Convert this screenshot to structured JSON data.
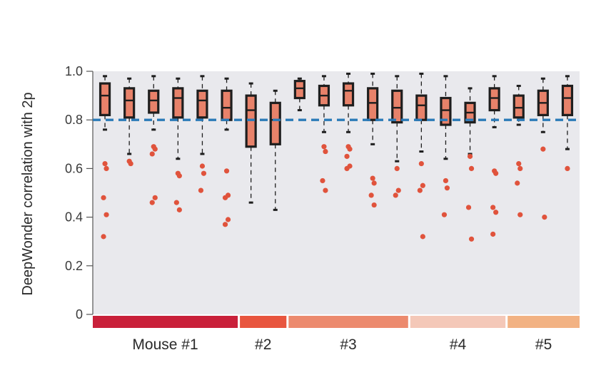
{
  "chart_data": {
    "type": "box",
    "title": "",
    "xlabel": "",
    "ylabel": "DeepWonder correlation with 2p",
    "ylim": [
      0,
      1.0
    ],
    "yticks": [
      "0",
      "0.2",
      "0.4",
      "0.6",
      "0.8",
      "1.0"
    ],
    "ytick_values": [
      0,
      0.2,
      0.4,
      0.6,
      0.8,
      1.0
    ],
    "threshold": 0.8,
    "grid": false,
    "colors": {
      "plot_bg": "#e9e9ed",
      "box_fill": "#e8826a",
      "box_edge": "#1e1e1e",
      "outlier": "#e0533c",
      "threshold_line": "#2a7ab8"
    },
    "groups": [
      {
        "label": "Mouse #1",
        "color": "#c9203a",
        "count": 6
      },
      {
        "label": "#2",
        "color": "#e8553e",
        "count": 2
      },
      {
        "label": "#3",
        "color": "#ec8a6e",
        "count": 5
      },
      {
        "label": "#4",
        "color": "#f4c8b8",
        "count": 4
      },
      {
        "label": "#5",
        "color": "#f2b283",
        "count": 3
      }
    ],
    "boxes": [
      {
        "group": 0,
        "wlo": 0.76,
        "q1": 0.82,
        "med": 0.9,
        "q3": 0.95,
        "whi": 0.98,
        "outliers": [
          0.62,
          0.6,
          0.48,
          0.41,
          0.32
        ]
      },
      {
        "group": 0,
        "wlo": 0.66,
        "q1": 0.81,
        "med": 0.88,
        "q3": 0.93,
        "whi": 0.97,
        "outliers": [
          0.63,
          0.62
        ]
      },
      {
        "group": 0,
        "wlo": 0.76,
        "q1": 0.83,
        "med": 0.88,
        "q3": 0.92,
        "whi": 0.98,
        "outliers": [
          0.69,
          0.68,
          0.66,
          0.48,
          0.46
        ]
      },
      {
        "group": 0,
        "wlo": 0.64,
        "q1": 0.81,
        "med": 0.89,
        "q3": 0.93,
        "whi": 0.97,
        "outliers": [
          0.58,
          0.57,
          0.46,
          0.43
        ]
      },
      {
        "group": 0,
        "wlo": 0.66,
        "q1": 0.81,
        "med": 0.88,
        "q3": 0.92,
        "whi": 0.98,
        "outliers": [
          0.61,
          0.58,
          0.51
        ]
      },
      {
        "group": 0,
        "wlo": 0.76,
        "q1": 0.8,
        "med": 0.85,
        "q3": 0.92,
        "whi": 0.97,
        "outliers": [
          0.59,
          0.49,
          0.48,
          0.39,
          0.37
        ]
      },
      {
        "group": 1,
        "wlo": 0.46,
        "q1": 0.69,
        "med": 0.84,
        "q3": 0.9,
        "whi": 0.95,
        "outliers": []
      },
      {
        "group": 1,
        "wlo": 0.43,
        "q1": 0.7,
        "med": 0.8,
        "q3": 0.87,
        "whi": 0.92,
        "outliers": []
      },
      {
        "group": 2,
        "wlo": 0.84,
        "q1": 0.89,
        "med": 0.93,
        "q3": 0.96,
        "whi": 0.97,
        "outliers": []
      },
      {
        "group": 2,
        "wlo": 0.75,
        "q1": 0.86,
        "med": 0.9,
        "q3": 0.94,
        "whi": 0.98,
        "outliers": [
          0.69,
          0.67,
          0.55,
          0.51
        ]
      },
      {
        "group": 2,
        "wlo": 0.75,
        "q1": 0.86,
        "med": 0.92,
        "q3": 0.95,
        "whi": 0.99,
        "outliers": [
          0.69,
          0.68,
          0.65,
          0.61,
          0.6
        ]
      },
      {
        "group": 2,
        "wlo": 0.7,
        "q1": 0.8,
        "med": 0.87,
        "q3": 0.93,
        "whi": 0.99,
        "outliers": [
          0.56,
          0.54,
          0.49,
          0.45
        ]
      },
      {
        "group": 2,
        "wlo": 0.63,
        "q1": 0.79,
        "med": 0.85,
        "q3": 0.92,
        "whi": 0.98,
        "outliers": [
          0.6,
          0.51,
          0.49
        ]
      },
      {
        "group": 3,
        "wlo": 0.67,
        "q1": 0.8,
        "med": 0.86,
        "q3": 0.9,
        "whi": 0.99,
        "outliers": [
          0.62,
          0.53,
          0.51,
          0.32
        ]
      },
      {
        "group": 3,
        "wlo": 0.64,
        "q1": 0.78,
        "med": 0.84,
        "q3": 0.89,
        "whi": 0.98,
        "outliers": [
          0.55,
          0.52,
          0.41
        ]
      },
      {
        "group": 3,
        "wlo": 0.66,
        "q1": 0.79,
        "med": 0.83,
        "q3": 0.87,
        "whi": 0.93,
        "outliers": [
          0.65,
          0.6,
          0.44,
          0.31
        ]
      },
      {
        "group": 3,
        "wlo": 0.77,
        "q1": 0.84,
        "med": 0.89,
        "q3": 0.93,
        "whi": 0.98,
        "outliers": [
          0.59,
          0.58,
          0.44,
          0.42,
          0.33
        ]
      },
      {
        "group": 4,
        "wlo": 0.78,
        "q1": 0.81,
        "med": 0.85,
        "q3": 0.9,
        "whi": 0.94,
        "outliers": [
          0.62,
          0.6,
          0.54,
          0.41
        ]
      },
      {
        "group": 4,
        "wlo": 0.75,
        "q1": 0.82,
        "med": 0.87,
        "q3": 0.92,
        "whi": 0.97,
        "outliers": [
          0.68,
          0.4
        ]
      },
      {
        "group": 4,
        "wlo": 0.68,
        "q1": 0.82,
        "med": 0.89,
        "q3": 0.94,
        "whi": 0.98,
        "outliers": [
          0.6
        ]
      }
    ]
  }
}
